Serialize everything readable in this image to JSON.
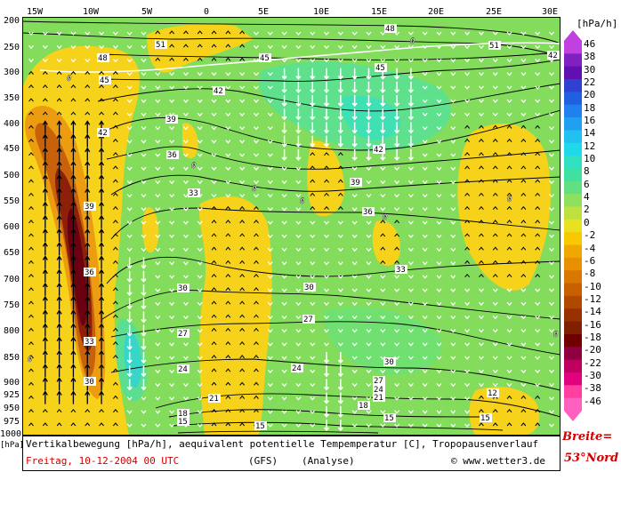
{
  "x_ticks": [
    "15W",
    "10W",
    "5W",
    "0",
    "5E",
    "10E",
    "15E",
    "20E",
    "25E",
    "30E"
  ],
  "y_ticks": [
    "200",
    "250",
    "300",
    "350",
    "400",
    "450",
    "500",
    "550",
    "600",
    "650",
    "700",
    "750",
    "800",
    "850",
    "900",
    "925",
    "950",
    "975",
    "1000"
  ],
  "y_unit": "[hPa]",
  "legend": {
    "title": "[hPa/h]",
    "labels": [
      "46",
      "38",
      "30",
      "22",
      "20",
      "18",
      "16",
      "14",
      "12",
      "10",
      "8",
      "6",
      "4",
      "2",
      "0",
      "-2",
      "-4",
      "-6",
      "-8",
      "-10",
      "-12",
      "-14",
      "-16",
      "-18",
      "-20",
      "-22",
      "-30",
      "-38",
      "-46"
    ],
    "colors": [
      "#c040e0",
      "#8020c0",
      "#6010b0",
      "#3040d0",
      "#2060e0",
      "#2080f0",
      "#20a0f0",
      "#20c0f0",
      "#20d8e8",
      "#30e0c0",
      "#40e0a0",
      "#60e080",
      "#90e060",
      "#c0e040",
      "#e8e020",
      "#f8c800",
      "#f0a800",
      "#e89000",
      "#d87800",
      "#c86000",
      "#b04800",
      "#983000",
      "#802000",
      "#700000",
      "#900040",
      "#c00060",
      "#e00080",
      "#ff40a0",
      "#ff60c0"
    ]
  },
  "contour_labels": [
    "48",
    "51",
    "45",
    "42",
    "39",
    "36",
    "33",
    "30",
    "27",
    "24",
    "21",
    "18",
    "15",
    "12",
    "0"
  ],
  "caption": {
    "line1": "Vertikalbewegung [hPa/h], aequivalent potentielle Tempemperatur [C], Tropopausenverlauf",
    "date": "Freitag, 10-12-2004  00 UTC",
    "model": "(GFS)",
    "analysis": "(Analyse)",
    "copyright": "© www.wetter3.de"
  },
  "breite": {
    "label": "Breite=",
    "value": "53°Nord"
  }
}
